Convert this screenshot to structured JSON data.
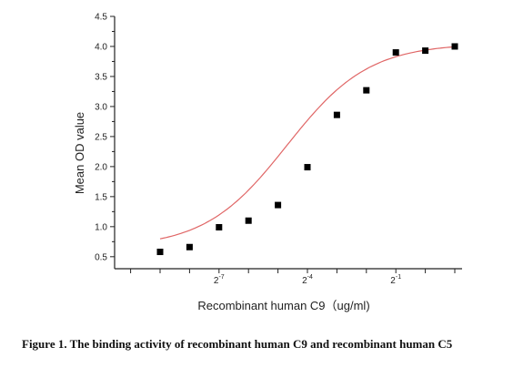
{
  "chart_data": {
    "type": "scatter",
    "title": "",
    "xlabel": "Recombinant human C9（ug/ml)",
    "ylabel": "Mean OD value",
    "x_scale": "log2",
    "xlim": [
      -10,
      0
    ],
    "ylim": [
      0.3,
      4.5
    ],
    "y_ticks": [
      "0.5",
      "1.0",
      "1.5",
      "2.0",
      "2.5",
      "3.0",
      "3.5",
      "4.0",
      "4.5"
    ],
    "x_tick_labels": [
      {
        "value": -7,
        "base": "2",
        "exp": "-7"
      },
      {
        "value": -4,
        "base": "2",
        "exp": "-4"
      },
      {
        "value": -1,
        "base": "2",
        "exp": "-1"
      }
    ],
    "grid": false,
    "series": [
      {
        "marker": "square",
        "color": "#000000",
        "x_log2": [
          -9,
          -8,
          -7,
          -6,
          -5,
          -4,
          -3,
          -2,
          -1,
          0,
          1
        ],
        "y": [
          0.58,
          0.66,
          0.99,
          1.1,
          1.36,
          1.99,
          2.86,
          3.27,
          3.9,
          3.93,
          4.0
        ]
      }
    ],
    "fit_curve": {
      "type": "4PL",
      "color": "#e06666",
      "bottom": 0.65,
      "top": 4.05,
      "ec50_log2": -4.7,
      "hill": 0.45
    }
  },
  "caption": "Figure 1. The binding activity of recombinant human C9 and recombinant human C5"
}
